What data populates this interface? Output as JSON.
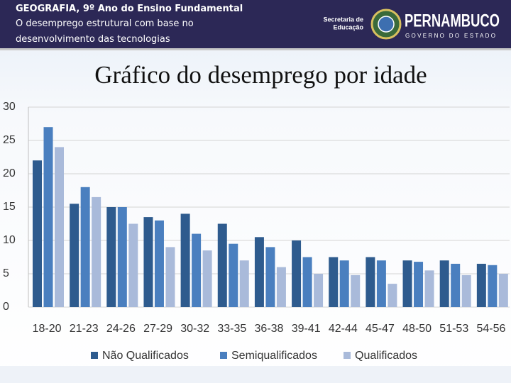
{
  "header": {
    "subject": "GEOGRAFIA, 9º Ano do Ensino Fundamental",
    "topic_lines": [
      "O desemprego estrutural com base no",
      "desenvolvimento das tecnologias"
    ],
    "logo": {
      "secretaria": [
        "Secretaria de",
        "Educação"
      ],
      "state": "PERNAMBUCO",
      "government": "GOVERNO DO ESTADO"
    }
  },
  "chart_data": {
    "type": "bar",
    "title": "Gráfico do desemprego por idade",
    "categories": [
      "18-20",
      "21-23",
      "24-26",
      "27-29",
      "30-32",
      "33-35",
      "36-38",
      "39-41",
      "42-44",
      "45-47",
      "48-50",
      "51-53",
      "54-56"
    ],
    "series": [
      {
        "name": "Não Qualificados",
        "color": "#2e5b8e",
        "values": [
          22,
          15.5,
          15,
          13.5,
          14,
          12.5,
          10.5,
          10,
          7.5,
          7.5,
          7,
          7,
          6.5
        ]
      },
      {
        "name": "Semiqualificados",
        "color": "#4a7fbf",
        "values": [
          27,
          18,
          15,
          13,
          11,
          9.5,
          9,
          7.5,
          7,
          7,
          6.8,
          6.5,
          6.3
        ]
      },
      {
        "name": "Qualificados",
        "color": "#a9bada",
        "values": [
          24,
          16.5,
          12.5,
          9,
          8.5,
          7,
          6,
          5,
          4.8,
          3.5,
          5.5,
          4.8,
          5
        ]
      }
    ],
    "ylim": [
      0,
      30
    ],
    "yticks": [
      0,
      5,
      10,
      15,
      20,
      25,
      30
    ],
    "grid": true,
    "legend": "bottom"
  }
}
